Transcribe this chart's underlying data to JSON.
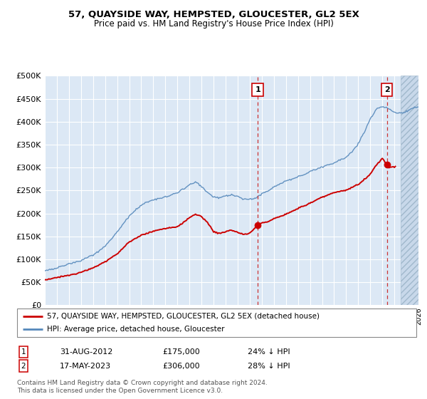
{
  "title": "57, QUAYSIDE WAY, HEMPSTED, GLOUCESTER, GL2 5EX",
  "subtitle": "Price paid vs. HM Land Registry's House Price Index (HPI)",
  "legend_label_red": "57, QUAYSIDE WAY, HEMPSTED, GLOUCESTER, GL2 5EX (detached house)",
  "legend_label_blue": "HPI: Average price, detached house, Gloucester",
  "annotation1_date": "31-AUG-2012",
  "annotation1_price": "£175,000",
  "annotation1_hpi": "24% ↓ HPI",
  "annotation1_year": 2012.67,
  "annotation1_value": 175000,
  "annotation2_date": "17-MAY-2023",
  "annotation2_price": "£306,000",
  "annotation2_hpi": "28% ↓ HPI",
  "annotation2_year": 2023.38,
  "annotation2_value": 306000,
  "footer": "Contains HM Land Registry data © Crown copyright and database right 2024.\nThis data is licensed under the Open Government Licence v3.0.",
  "ylim": [
    0,
    500000
  ],
  "yticks": [
    0,
    50000,
    100000,
    150000,
    200000,
    250000,
    300000,
    350000,
    400000,
    450000,
    500000
  ],
  "xlim_start": 1995,
  "xlim_end": 2026,
  "plot_bg_color": "#dce8f5",
  "grid_color": "#ffffff",
  "red_color": "#cc0000",
  "blue_color": "#5588bb",
  "dashed_line_color": "#cc3333",
  "hatch_region_start": 2024.5,
  "hatch_region_color": "#c8d8ea"
}
